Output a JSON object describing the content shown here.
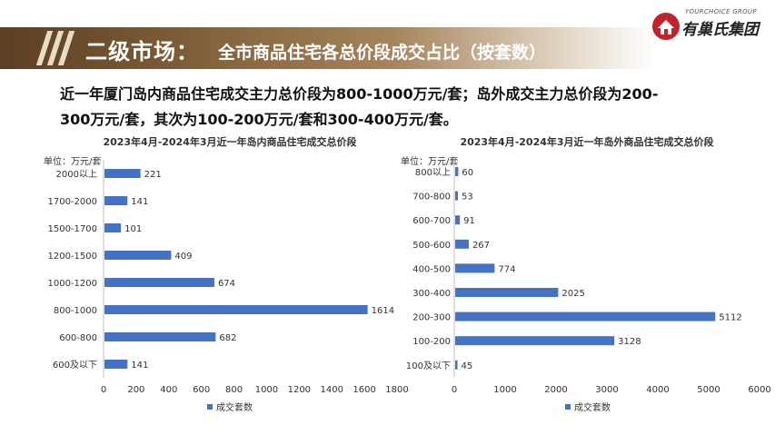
{
  "header": {
    "title_main": "二级市场：",
    "title_sub": "全市商品住宅各总价段成交占比（按套数）"
  },
  "logo": {
    "english": "YOURCHOICE GROUP",
    "chinese": "有巢氏集团"
  },
  "summary": {
    "line1": "近一年厦门岛内商品住宅成交主力总价段为800-1000万元/套；岛外成交主力总价段为200-",
    "line2": "300万元/套，其次为100-200万元/套和300-400万元/套。"
  },
  "colors": {
    "bar": "#4472c4",
    "header_dark": "#5a3f22",
    "logo_red": "#c0242b"
  },
  "chart_data": [
    {
      "type": "bar",
      "orientation": "horizontal",
      "title": "2023年4月-2024年3月近一年岛内商品住宅成交总价段",
      "unit_label": "单位：万元/套",
      "categories": [
        "2000以上",
        "1700-2000",
        "1500-1700",
        "1200-1500",
        "1000-1200",
        "800-1000",
        "600-800",
        "600及以下"
      ],
      "values": [
        221,
        141,
        101,
        409,
        674,
        1614,
        682,
        141
      ],
      "series_name": "成交套数",
      "xlim": [
        0,
        1800
      ],
      "xticks": [
        0,
        200,
        400,
        600,
        800,
        1000,
        1200,
        1400,
        1600,
        1800
      ],
      "legend_position": "bottom-left"
    },
    {
      "type": "bar",
      "orientation": "horizontal",
      "title": "2023年4月-2024年3月近一年岛外商品住宅成交总价段",
      "unit_label": "单位：万元/套",
      "categories": [
        "800以上",
        "700-800",
        "600-700",
        "500-600",
        "400-500",
        "300-400",
        "200-300",
        "100-200",
        "100及以下"
      ],
      "values": [
        60,
        53,
        91,
        267,
        774,
        2025,
        5112,
        3128,
        45
      ],
      "series_name": "成交套数",
      "xlim": [
        0,
        6000
      ],
      "xticks": [
        0,
        1000,
        2000,
        3000,
        4000,
        5000,
        6000
      ],
      "legend_position": "bottom-left"
    }
  ]
}
